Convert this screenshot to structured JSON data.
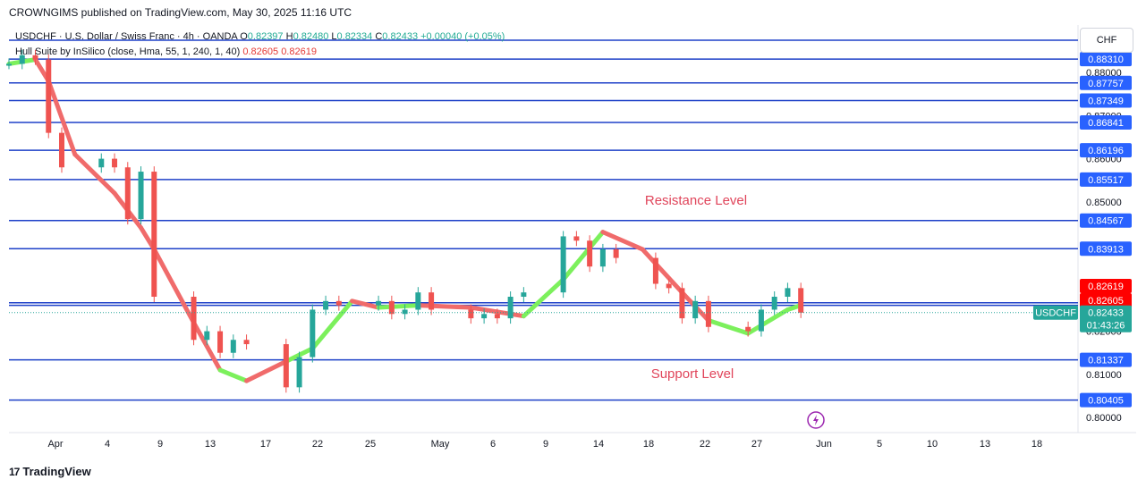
{
  "header": {
    "published": "CROWNGIMS published on TradingView.com, May 30, 2025 11:16 UTC"
  },
  "legend": {
    "symbol_line": "USDCHF · U.S. Dollar / Swiss Franc · 4h · OANDA",
    "open_label": "O",
    "open": "0.82397",
    "high_label": "H",
    "high": "0.82480",
    "low_label": "L",
    "low": "0.82334",
    "close_label": "C",
    "close": "0.82433",
    "change": "+0.00040 (+0.05%)",
    "indicator": "Hull Suite by InSilico (close, Hma, 55, 1, 240, 1, 40)",
    "indicator_v1": "0.82605",
    "indicator_v2": "0.82619"
  },
  "currency_button": "CHF",
  "footer": {
    "brand": "TradingView",
    "logo": "17"
  },
  "colors": {
    "level_line": "#1e40c8",
    "level_label_bg": "#2962ff",
    "price_tag_bg": "#26a69a",
    "hull_down": "#f06b6b",
    "hull_up": "#7cf05c",
    "candle_up": "#26a69a",
    "candle_down": "#ef5350",
    "annotation": "#e0445a",
    "red_tag": "#ff0000",
    "gold_icon": "#9c27b0"
  },
  "chart_data": {
    "type": "candlestick",
    "symbol": "USDCHF",
    "timeframe": "4h",
    "ylim": [
      0.7965,
      0.891
    ],
    "y_ticks": [
      0.8,
      0.81,
      0.82,
      0.83,
      0.84,
      0.85,
      0.86,
      0.87,
      0.88
    ],
    "x_ticks": [
      "Apr",
      "4",
      "9",
      "13",
      "17",
      "22",
      "25",
      "May",
      "6",
      "9",
      "14",
      "18",
      "22",
      "27",
      "Jun",
      "5",
      "10",
      "13",
      "18"
    ],
    "x_range": [
      "2025-03-31",
      "2025-06-20"
    ],
    "levels": [
      "0.88310",
      "0.87757",
      "0.87349",
      "0.86841",
      "0.86196",
      "0.85517",
      "0.84567",
      "0.83913",
      "0.82661",
      "0.81337",
      "0.80405"
    ],
    "level_at_close_line": 0.826,
    "other_axis_labels": [
      "0.85000",
      "0.81000",
      "0.80000"
    ],
    "hull_tags": {
      "upper": "0.82619",
      "lower": "0.82605"
    },
    "last_price": {
      "symbol": "USDCHF",
      "price": "0.82433",
      "countdown": "01:43:26"
    },
    "annotations": [
      "Resistance Level",
      "Support Level"
    ],
    "hull_path": [
      {
        "t": "2025-03-31",
        "v": 0.882,
        "trend": "down"
      },
      {
        "t": "2025-04-02",
        "v": 0.883,
        "trend": "up"
      },
      {
        "t": "2025-04-03",
        "v": 0.878,
        "trend": "down"
      },
      {
        "t": "2025-04-05",
        "v": 0.861,
        "trend": "down"
      },
      {
        "t": "2025-04-08",
        "v": 0.852,
        "trend": "down"
      },
      {
        "t": "2025-04-10",
        "v": 0.844,
        "trend": "down"
      },
      {
        "t": "2025-04-11",
        "v": 0.839,
        "trend": "down"
      },
      {
        "t": "2025-04-14",
        "v": 0.822,
        "trend": "down"
      },
      {
        "t": "2025-04-16",
        "v": 0.811,
        "trend": "down"
      },
      {
        "t": "2025-04-18",
        "v": 0.8085,
        "trend": "up"
      },
      {
        "t": "2025-04-21",
        "v": 0.813,
        "trend": "down"
      },
      {
        "t": "2025-04-23",
        "v": 0.816,
        "trend": "up"
      },
      {
        "t": "2025-04-26",
        "v": 0.827,
        "trend": "up"
      },
      {
        "t": "2025-04-28",
        "v": 0.8255,
        "trend": "down"
      },
      {
        "t": "2025-05-01",
        "v": 0.826,
        "trend": "up"
      },
      {
        "t": "2025-05-05",
        "v": 0.8255,
        "trend": "down"
      },
      {
        "t": "2025-05-09",
        "v": 0.8235,
        "trend": "down"
      },
      {
        "t": "2025-05-12",
        "v": 0.832,
        "trend": "up"
      },
      {
        "t": "2025-05-15",
        "v": 0.843,
        "trend": "up"
      },
      {
        "t": "2025-05-18",
        "v": 0.839,
        "trend": "down"
      },
      {
        "t": "2025-05-21",
        "v": 0.829,
        "trend": "down"
      },
      {
        "t": "2025-05-23",
        "v": 0.8225,
        "trend": "down"
      },
      {
        "t": "2025-05-26",
        "v": 0.8195,
        "trend": "up"
      },
      {
        "t": "2025-05-29",
        "v": 0.825,
        "trend": "up"
      },
      {
        "t": "2025-05-30",
        "v": 0.826,
        "trend": "up"
      }
    ],
    "candles": [
      {
        "t": "2025-03-31",
        "v": 0.882
      },
      {
        "t": "2025-04-01",
        "v": 0.884
      },
      {
        "t": "2025-04-02",
        "v": 0.883
      },
      {
        "t": "2025-04-03",
        "v": 0.866
      },
      {
        "t": "2025-04-04",
        "v": 0.858
      },
      {
        "t": "2025-04-07",
        "v": 0.86
      },
      {
        "t": "2025-04-08",
        "v": 0.858
      },
      {
        "t": "2025-04-09",
        "v": 0.846
      },
      {
        "t": "2025-04-10",
        "v": 0.857
      },
      {
        "t": "2025-04-11",
        "v": 0.828
      },
      {
        "t": "2025-04-14",
        "v": 0.818
      },
      {
        "t": "2025-04-15",
        "v": 0.82
      },
      {
        "t": "2025-04-16",
        "v": 0.815
      },
      {
        "t": "2025-04-17",
        "v": 0.818
      },
      {
        "t": "2025-04-18",
        "v": 0.817
      },
      {
        "t": "2025-04-21",
        "v": 0.807
      },
      {
        "t": "2025-04-22",
        "v": 0.814
      },
      {
        "t": "2025-04-23",
        "v": 0.825
      },
      {
        "t": "2025-04-24",
        "v": 0.827
      },
      {
        "t": "2025-04-25",
        "v": 0.826
      },
      {
        "t": "2025-04-28",
        "v": 0.827
      },
      {
        "t": "2025-04-29",
        "v": 0.824
      },
      {
        "t": "2025-04-30",
        "v": 0.825
      },
      {
        "t": "2025-05-01",
        "v": 0.829
      },
      {
        "t": "2025-05-02",
        "v": 0.825
      },
      {
        "t": "2025-05-05",
        "v": 0.823
      },
      {
        "t": "2025-05-06",
        "v": 0.824
      },
      {
        "t": "2025-05-07",
        "v": 0.823
      },
      {
        "t": "2025-05-08",
        "v": 0.828
      },
      {
        "t": "2025-05-09",
        "v": 0.829
      },
      {
        "t": "2025-05-12",
        "v": 0.842
      },
      {
        "t": "2025-05-13",
        "v": 0.841
      },
      {
        "t": "2025-05-14",
        "v": 0.835
      },
      {
        "t": "2025-05-15",
        "v": 0.839
      },
      {
        "t": "2025-05-16",
        "v": 0.837
      },
      {
        "t": "2025-05-19",
        "v": 0.831
      },
      {
        "t": "2025-05-20",
        "v": 0.83
      },
      {
        "t": "2025-05-21",
        "v": 0.823
      },
      {
        "t": "2025-05-22",
        "v": 0.827
      },
      {
        "t": "2025-05-23",
        "v": 0.821
      },
      {
        "t": "2025-05-26",
        "v": 0.82
      },
      {
        "t": "2025-05-27",
        "v": 0.825
      },
      {
        "t": "2025-05-28",
        "v": 0.828
      },
      {
        "t": "2025-05-29",
        "v": 0.83
      },
      {
        "t": "2025-05-30",
        "v": 0.8243
      }
    ]
  }
}
